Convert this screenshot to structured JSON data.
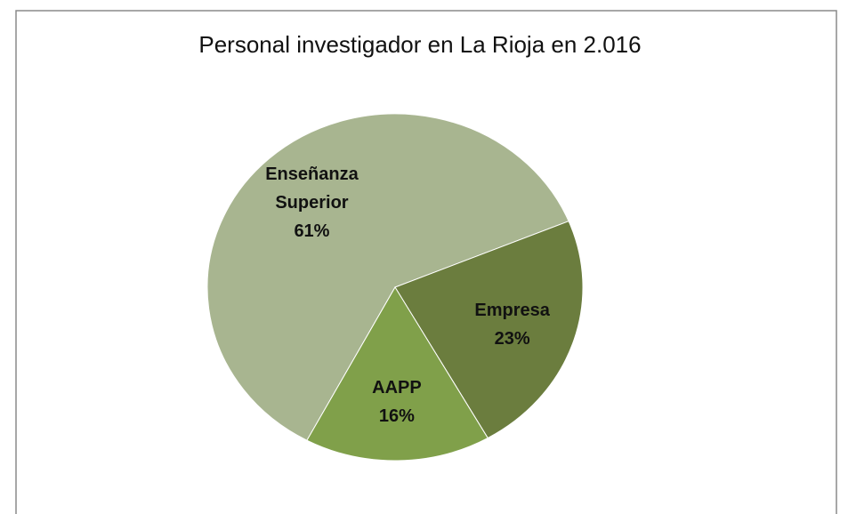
{
  "chart_data": {
    "type": "pie",
    "title": "Personal investigador en La Rioja en 2.016",
    "categories": [
      "Enseñanza Superior",
      "Empresa",
      "AAPP"
    ],
    "values": [
      61,
      23,
      16
    ],
    "value_labels": [
      "61%",
      "23%",
      "16%"
    ],
    "colors": [
      "#a8b590",
      "#6b7d3e",
      "#80a04a"
    ]
  }
}
